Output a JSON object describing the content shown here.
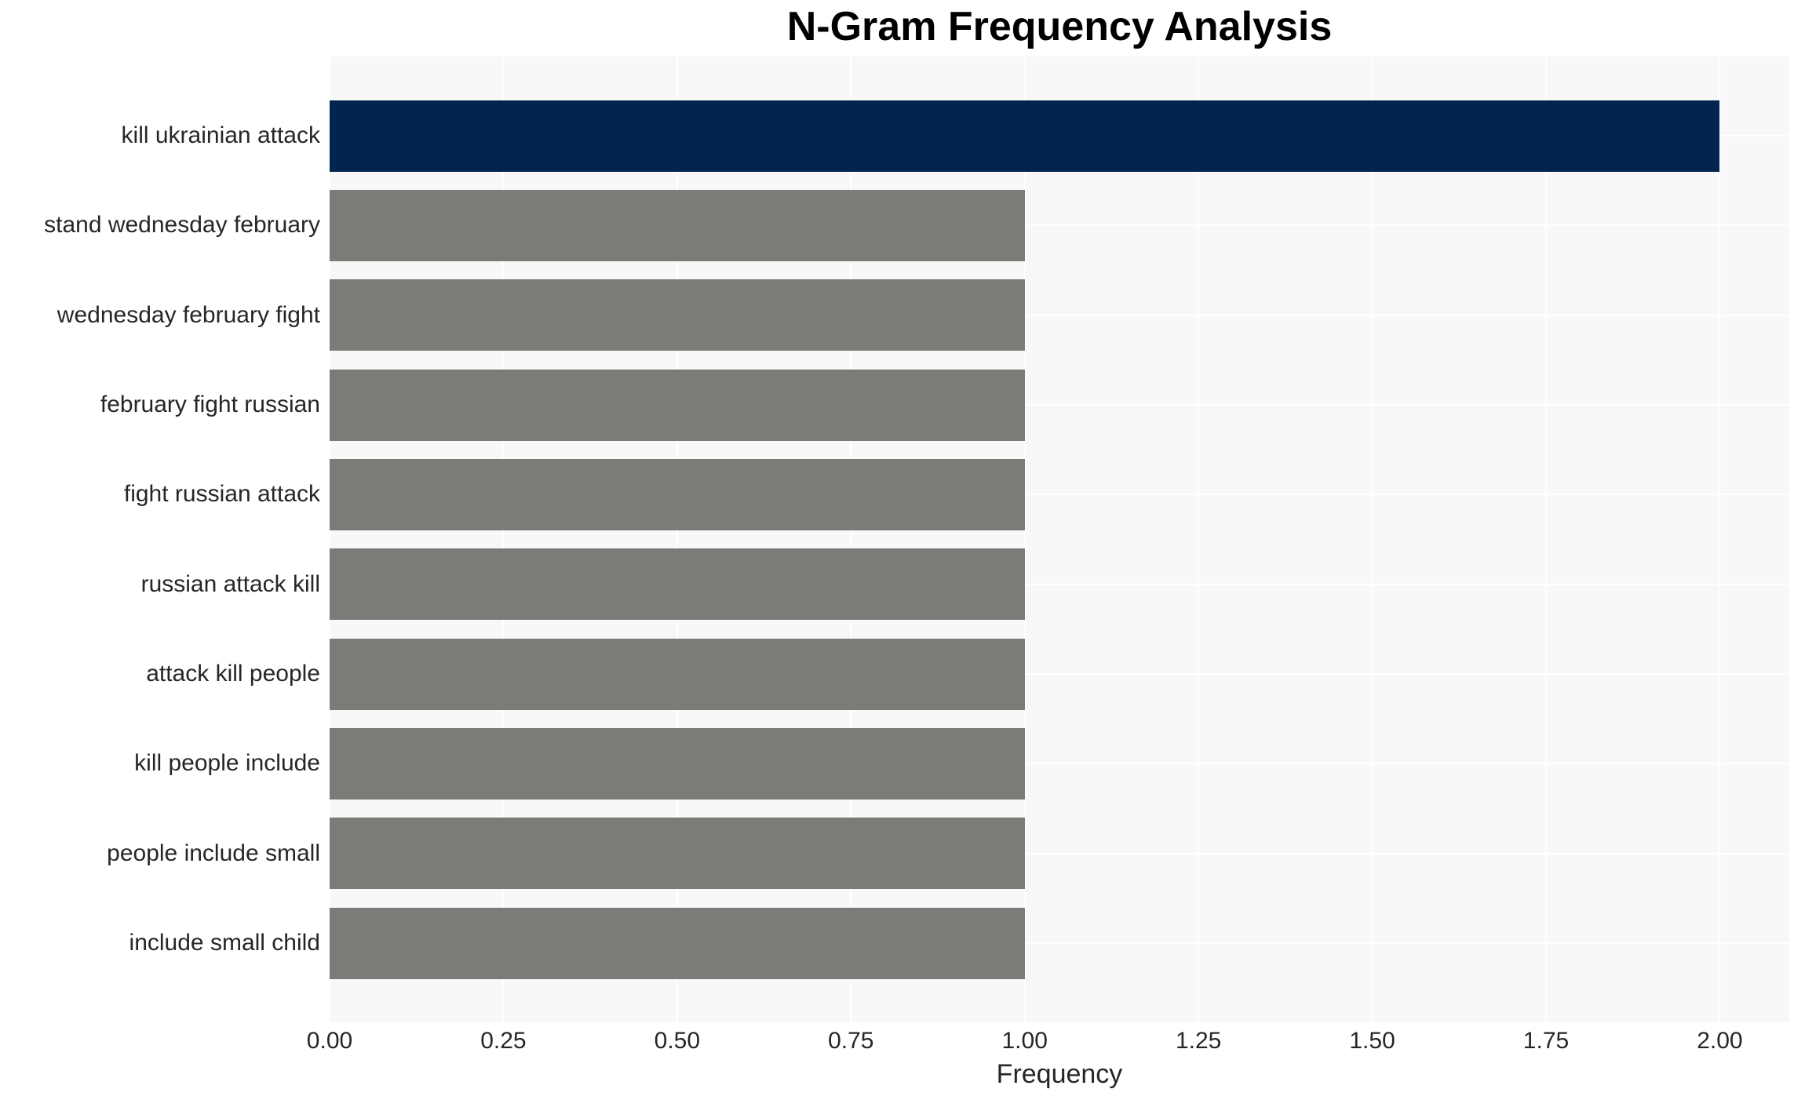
{
  "chart_data": {
    "type": "bar",
    "orientation": "horizontal",
    "title": "N-Gram Frequency Analysis",
    "xlabel": "Frequency",
    "ylabel": "",
    "categories": [
      "kill ukrainian attack",
      "stand wednesday february",
      "wednesday february fight",
      "february fight russian",
      "fight russian attack",
      "russian attack kill",
      "attack kill people",
      "kill people include",
      "people include small",
      "include small child"
    ],
    "values": [
      2,
      1,
      1,
      1,
      1,
      1,
      1,
      1,
      1,
      1
    ],
    "bar_colors": [
      "#02244e",
      "#7b7b77",
      "#7b7b77",
      "#7b7b77",
      "#7b7b77",
      "#7b7b77",
      "#7b7b77",
      "#7b7b77",
      "#7b7b77",
      "#7b7b77"
    ],
    "highlight_color": "#02244e",
    "default_color": "#7b7b77",
    "xlim": [
      0,
      2.1
    ],
    "xticks": [
      0,
      0.25,
      0.5,
      0.75,
      1.0,
      1.25,
      1.5,
      1.75,
      2.0
    ],
    "xtick_labels": [
      "0.00",
      "0.25",
      "0.50",
      "0.75",
      "1.00",
      "1.25",
      "1.50",
      "1.75",
      "2.00"
    ],
    "grid": true,
    "grid_color": "#ffffff",
    "plot_bg": "#f8f8f9",
    "text_color": "#262626",
    "title_color": "#000000",
    "legend": false
  }
}
